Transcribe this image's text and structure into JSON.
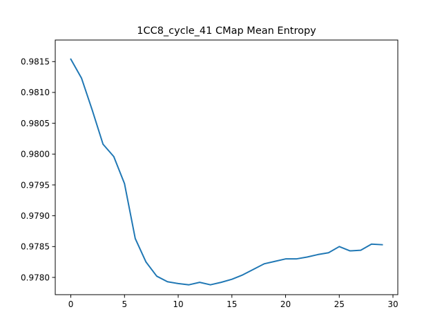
{
  "chart_data": {
    "type": "line",
    "title": "1CC8_cycle_41 CMap Mean Entropy",
    "xlabel": "",
    "ylabel": "",
    "xlim": [
      -1.45,
      30.45
    ],
    "ylim": [
      0.97772,
      0.98185
    ],
    "x_ticks": [
      0,
      5,
      10,
      15,
      20,
      25,
      30
    ],
    "y_ticks": [
      0.978,
      0.9785,
      0.979,
      0.9795,
      0.98,
      0.9805,
      0.981,
      0.9815
    ],
    "x_tick_labels": [
      "0",
      "5",
      "10",
      "15",
      "20",
      "25",
      "30"
    ],
    "y_tick_labels": [
      "0.9780",
      "0.9785",
      "0.9790",
      "0.9795",
      "0.9800",
      "0.9805",
      "0.9810",
      "0.9815"
    ],
    "grid": false,
    "series": [
      {
        "color": "#1f77b4",
        "x": [
          0,
          1,
          2,
          3,
          4,
          5,
          6,
          7,
          8,
          9,
          10,
          11,
          12,
          13,
          14,
          15,
          16,
          17,
          18,
          19,
          20,
          21,
          22,
          23,
          24,
          25,
          26,
          27,
          28,
          29
        ],
        "y": [
          0.98154,
          0.98123,
          0.98071,
          0.98016,
          0.97996,
          0.97952,
          0.97863,
          0.97825,
          0.97802,
          0.97793,
          0.9779,
          0.97788,
          0.97792,
          0.97788,
          0.97792,
          0.97797,
          0.97804,
          0.97813,
          0.97822,
          0.97826,
          0.9783,
          0.9783,
          0.97833,
          0.97837,
          0.9784,
          0.9785,
          0.97843,
          0.97844,
          0.97854,
          0.97853
        ]
      }
    ]
  }
}
